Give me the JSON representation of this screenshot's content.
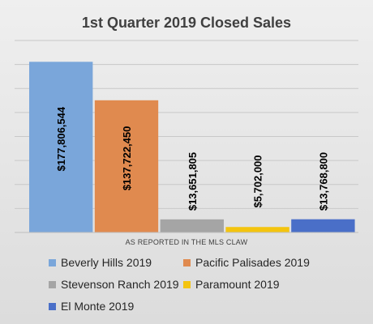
{
  "chart_data": {
    "type": "bar",
    "title": "1st Quarter 2019 Closed Sales",
    "xlabel": "AS REPORTED IN THE MLS CLAW",
    "ylabel": "",
    "ylim": [
      0,
      200000000
    ],
    "grid": true,
    "legend_position": "bottom",
    "series": [
      {
        "name": "Beverly Hills 2019",
        "value": 177806544,
        "label": "$177,806,544",
        "color": "#7aa6da"
      },
      {
        "name": "Pacific Palisades 2019",
        "value": 137722450,
        "label": "$137,722,450",
        "color": "#e08a4f"
      },
      {
        "name": "Stevenson Ranch 2019",
        "value": 13651805,
        "label": "$13,651,805",
        "color": "#a5a5a5"
      },
      {
        "name": "Paramount 2019",
        "value": 5702000,
        "label": "$5,702,000",
        "color": "#f4c40f"
      },
      {
        "name": "El Monte 2019",
        "value": 13768800,
        "label": "$13,768,800",
        "color": "#4a6fc8"
      }
    ]
  }
}
